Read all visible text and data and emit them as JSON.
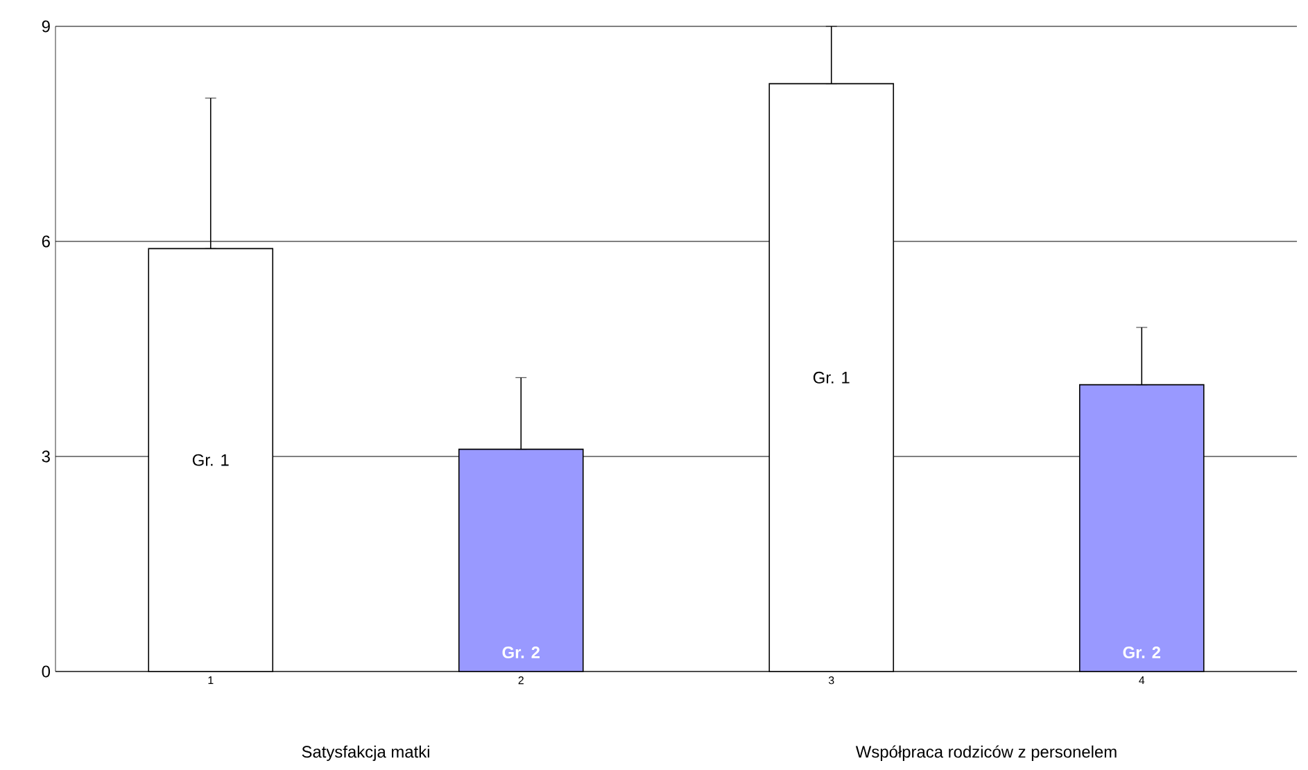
{
  "chart_data": {
    "type": "bar",
    "categories": [
      "1",
      "2",
      "3",
      "4"
    ],
    "series": [
      {
        "name": "Gr. 1",
        "color": "#ffffff",
        "values": [
          5.9,
          null,
          8.2,
          null
        ],
        "errors": [
          [
            5.9,
            8.0
          ],
          null,
          [
            8.2,
            9.0
          ],
          null
        ]
      },
      {
        "name": "Gr. 2",
        "color": "#9999ff",
        "values": [
          null,
          3.1,
          null,
          4.0
        ],
        "errors": [
          null,
          [
            3.1,
            4.1
          ],
          null,
          [
            4.0,
            4.8
          ]
        ]
      }
    ],
    "ylim": [
      0,
      9
    ],
    "yticks": [
      0,
      3,
      6,
      9
    ],
    "grid": "y",
    "annotations": [
      "Satysfakcja matki",
      "Współpraca rodziców z personelem"
    ]
  }
}
